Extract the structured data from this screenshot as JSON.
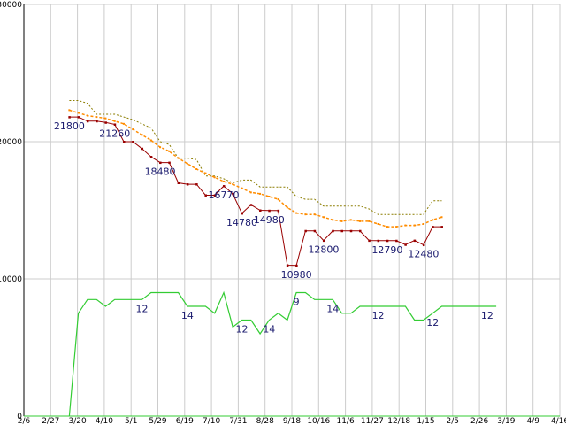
{
  "chart_data": {
    "type": "line",
    "title": "",
    "xlabel": "",
    "ylabel": "",
    "ylim": [
      0,
      30000
    ],
    "yticks": [
      "0",
      "10000",
      "20000",
      "30000"
    ],
    "xticks": [
      "2/6",
      "2/27",
      "3/20",
      "4/10",
      "5/1",
      "5/29",
      "6/19",
      "7/10",
      "7/31",
      "8/28",
      "9/18",
      "10/16",
      "11/6",
      "11/27",
      "12/18",
      "1/15",
      "2/5",
      "2/26",
      "3/19",
      "4/9",
      "4/16"
    ],
    "grid": true,
    "legend": "none",
    "n_points": 60,
    "series": [
      {
        "color": "#990000",
        "start_index": 5,
        "values": [
          21800,
          21800,
          21500,
          21500,
          21400,
          21260,
          20000,
          20000,
          19500,
          18900,
          18480,
          18480,
          17000,
          16900,
          16900,
          16100,
          16100,
          16770,
          16200,
          14780,
          15400,
          15000,
          14980,
          14980,
          11000,
          10980,
          13500,
          13500,
          12800,
          13500,
          13500,
          13500,
          13500,
          12800,
          12790,
          12790,
          12790,
          12500,
          12800,
          12480,
          13800,
          13800
        ]
      },
      {
        "color": "#ff8c00",
        "start_index": 5,
        "values": [
          22300,
          22100,
          21900,
          21800,
          21700,
          21500,
          21300,
          20900,
          20500,
          20100,
          19600,
          19300,
          18800,
          18400,
          18000,
          17700,
          17400,
          17100,
          16900,
          16600,
          16300,
          16200,
          16000,
          15800,
          15200,
          14800,
          14700,
          14700,
          14500,
          14300,
          14200,
          14300,
          14200,
          14200,
          14000,
          13800,
          13800,
          13900,
          13900,
          14000,
          14300,
          14500
        ]
      },
      {
        "color": "#8b7d00",
        "start_index": 5,
        "values": [
          23000,
          23000,
          22800,
          22000,
          22000,
          22000,
          21800,
          21600,
          21300,
          21000,
          20000,
          19800,
          18800,
          18800,
          18700,
          17500,
          17500,
          17300,
          17000,
          17200,
          17200,
          16700,
          16700,
          16700,
          16700,
          16000,
          15800,
          15800,
          15300,
          15300,
          15300,
          15300,
          15300,
          15100,
          14700,
          14700,
          14700,
          14700,
          14700,
          14700,
          15700,
          15700
        ]
      },
      {
        "color": "#33cc33",
        "start_index": 0,
        "values": [
          0,
          0,
          0,
          0,
          0,
          0,
          0,
          0,
          0,
          0,
          0,
          0,
          0,
          0,
          0,
          0,
          0,
          0,
          0,
          0,
          0,
          0,
          0,
          0,
          0,
          0,
          0,
          0,
          0,
          0,
          0,
          0,
          0,
          0,
          0,
          0,
          0,
          0,
          0,
          0,
          0,
          0,
          0,
          0,
          0,
          0,
          0,
          0,
          0,
          0,
          0,
          0,
          0,
          0,
          0,
          0,
          0,
          0,
          0,
          0
        ]
      }
    ],
    "count_series": {
      "color": "#33cc33",
      "start_index": 5,
      "min": 0,
      "max": 30,
      "values": [
        0,
        15,
        17,
        17,
        16,
        17,
        17,
        17,
        17,
        18,
        18,
        18,
        18,
        16,
        16,
        16,
        15,
        18,
        13,
        14,
        14,
        12,
        14,
        15,
        14,
        18,
        18,
        17,
        17,
        17,
        15,
        15,
        16,
        16,
        16,
        16,
        16,
        16,
        14,
        14,
        15,
        16,
        16,
        16,
        16,
        16,
        16,
        16
      ]
    },
    "data_labels": [
      {
        "text": "21800",
        "series": 0,
        "i": 0
      },
      {
        "text": "21260",
        "series": 0,
        "i": 5
      },
      {
        "text": "18480",
        "series": 0,
        "i": 10
      },
      {
        "text": "16770",
        "series": 0,
        "i": 17
      },
      {
        "text": "14780",
        "series": 0,
        "i": 19
      },
      {
        "text": "14980",
        "series": 0,
        "i": 22
      },
      {
        "text": "10980",
        "series": 0,
        "i": 25
      },
      {
        "text": "12800",
        "series": 0,
        "i": 28
      },
      {
        "text": "12790",
        "series": 0,
        "i": 35
      },
      {
        "text": "12480",
        "series": 0,
        "i": 39
      }
    ],
    "count_labels": [
      {
        "text": "12",
        "i": 8
      },
      {
        "text": "14",
        "i": 13
      },
      {
        "text": "12",
        "i": 19
      },
      {
        "text": "14",
        "i": 22
      },
      {
        "text": "9",
        "i": 25
      },
      {
        "text": "14",
        "i": 29
      },
      {
        "text": "12",
        "i": 34
      },
      {
        "text": "12",
        "i": 40
      },
      {
        "text": "12",
        "i": 46
      }
    ]
  }
}
